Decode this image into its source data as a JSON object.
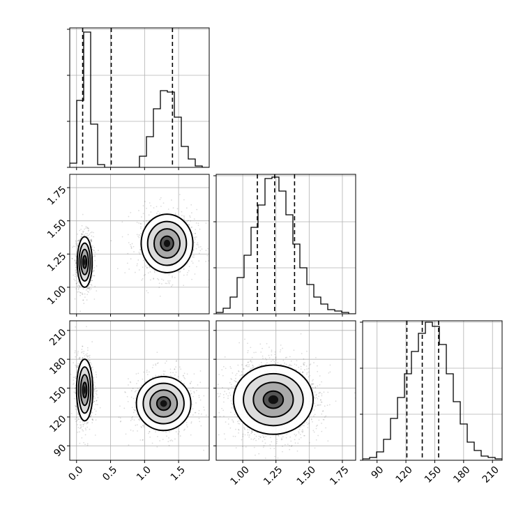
{
  "chart_data": {
    "type": "corner",
    "parameters": [
      {
        "name": "",
        "ticks": [
          0.0,
          0.5,
          1.0,
          1.5
        ],
        "tick_labels": [
          "0.0",
          "0.5",
          "1.0",
          "1.5"
        ],
        "range": [
          -0.1,
          1.95
        ],
        "hist_edges_start": -0.1,
        "hist_bin_width": 0.1025,
        "hist_counts": [
          3,
          48,
          97,
          31,
          2,
          0,
          0,
          0,
          0,
          0,
          8,
          22,
          42,
          55,
          54,
          36,
          15,
          6,
          1,
          0
        ],
        "quantiles": [
          0.09,
          0.51,
          1.41
        ]
      },
      {
        "name": "",
        "ticks": [
          1.0,
          1.25,
          1.5,
          1.75
        ],
        "tick_labels": [
          "1.00",
          "1.25",
          "1.50",
          "1.75"
        ],
        "range": [
          0.8,
          1.85
        ],
        "hist_edges_start": 0.8,
        "hist_bin_width": 0.0525,
        "hist_counts": [
          1,
          4,
          12,
          26,
          42,
          62,
          78,
          97,
          98,
          88,
          71,
          50,
          33,
          21,
          12,
          7,
          3,
          2,
          1,
          0
        ],
        "quantiles": [
          1.11,
          1.24,
          1.39
        ]
      },
      {
        "name": "",
        "ticks": [
          90,
          120,
          150,
          180,
          210
        ],
        "tick_labels": [
          "90",
          "120",
          "150",
          "180",
          "210"
        ],
        "range": [
          75,
          220
        ],
        "hist_edges_start": 75,
        "hist_bin_width": 7.25,
        "hist_counts": [
          1,
          2,
          6,
          15,
          30,
          45,
          62,
          78,
          91,
          99,
          96,
          83,
          62,
          42,
          26,
          13,
          7,
          3,
          2,
          1
        ],
        "quantiles": [
          121,
          137,
          154
        ]
      }
    ],
    "hist_ymax": 100,
    "hist_yticks": [
      0,
      33,
      66,
      99
    ],
    "panels_2d": [
      {
        "x_param": 0,
        "y_param": 1,
        "modes": [
          {
            "cx": 0.12,
            "cy": 1.19,
            "sx": 0.055,
            "sy": 0.095,
            "weight": 0.52
          },
          {
            "cx": 1.33,
            "cy": 1.33,
            "sx": 0.19,
            "sy": 0.11,
            "weight": 0.48
          }
        ]
      },
      {
        "x_param": 0,
        "y_param": 2,
        "modes": [
          {
            "cx": 0.12,
            "cy": 148,
            "sx": 0.06,
            "sy": 16,
            "weight": 0.52
          },
          {
            "cx": 1.28,
            "cy": 134,
            "sx": 0.2,
            "sy": 14,
            "weight": 0.48
          }
        ]
      },
      {
        "x_param": 1,
        "y_param": 2,
        "modes": [
          {
            "cx": 1.23,
            "cy": 138,
            "sx": 0.15,
            "sy": 18,
            "weight": 1.0
          }
        ]
      }
    ],
    "grid": true,
    "legend": "none"
  }
}
